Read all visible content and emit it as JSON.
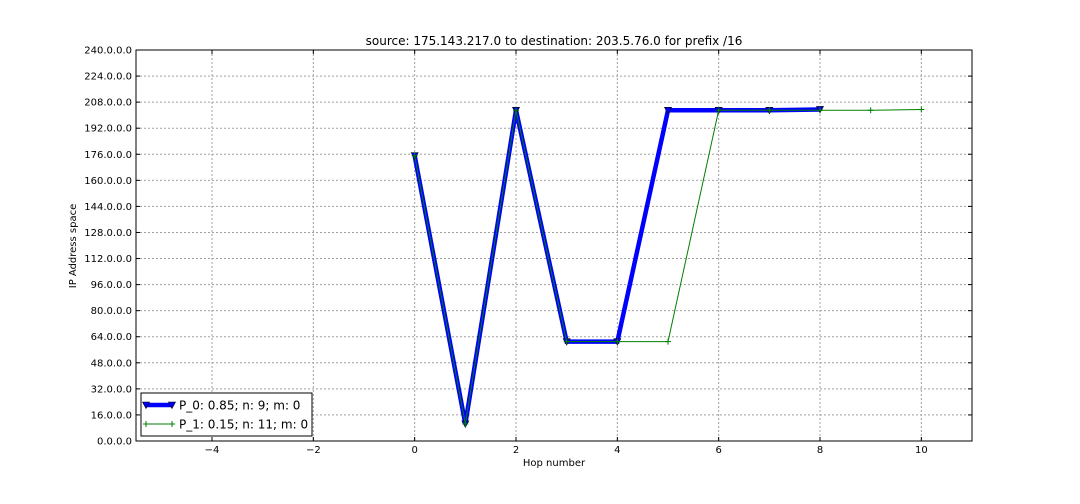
{
  "chart_data": {
    "type": "line",
    "title": "source: 175.143.217.0 to destination: 203.5.76.0 for prefix /16",
    "xlabel": "Hop number",
    "ylabel": "IP Address space",
    "xlim": [
      -5.5,
      11
    ],
    "ylim": [
      0,
      240
    ],
    "x_ticks": [
      -4,
      -2,
      0,
      2,
      4,
      6,
      8,
      10
    ],
    "x_tick_labels": [
      "−4",
      "−2",
      "0",
      "2",
      "4",
      "6",
      "8",
      "10"
    ],
    "y_ticks": [
      0,
      16,
      32,
      48,
      64,
      80,
      96,
      112,
      128,
      144,
      160,
      176,
      192,
      208,
      224,
      240
    ],
    "y_tick_labels": [
      "0.0.0.0",
      "16.0.0.0",
      "32.0.0.0",
      "48.0.0.0",
      "64.0.0.0",
      "80.0.0.0",
      "96.0.0.0",
      "112.0.0.0",
      "128.0.0.0",
      "144.0.0.0",
      "160.0.0.0",
      "176.0.0.0",
      "192.0.0.0",
      "208.0.0.0",
      "224.0.0.0",
      "240.0.0.0"
    ],
    "grid": true,
    "legend_position": "bottom-left",
    "series": [
      {
        "name": "P_0: 0.85; n: 9; m: 0",
        "color": "#0000ff",
        "marker": "triangle-down",
        "x": [
          0,
          1,
          2,
          3,
          4,
          5,
          6,
          7,
          8
        ],
        "y": [
          175.1,
          10.5,
          203.0,
          61.0,
          61.0,
          203.0,
          203.0,
          203.0,
          203.5
        ]
      },
      {
        "name": "P_1: 0.15; n: 11; m: 0",
        "color": "#008000",
        "marker": "plus",
        "x": [
          0,
          1,
          2,
          3,
          4,
          5,
          6,
          7,
          8,
          9,
          10
        ],
        "y": [
          175.1,
          10.5,
          203.0,
          61.0,
          61.0,
          61.0,
          203.0,
          203.0,
          203.0,
          203.0,
          203.5
        ]
      }
    ]
  }
}
